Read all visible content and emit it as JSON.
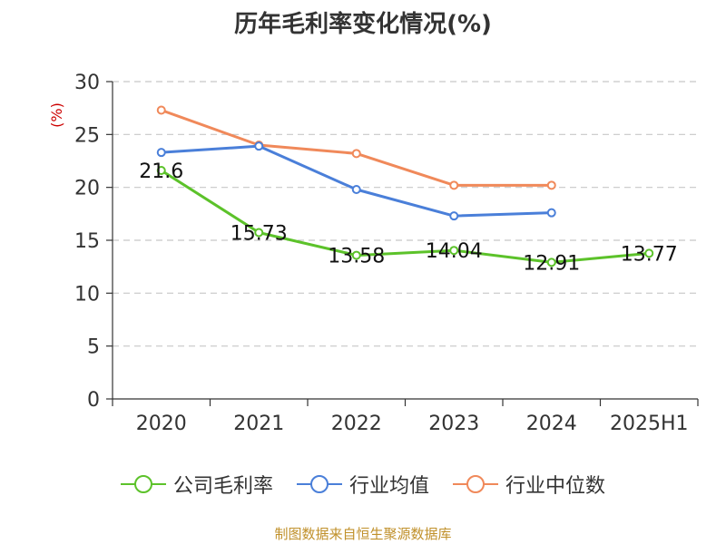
{
  "chart_data": {
    "type": "line",
    "title": "历年毛利率变化情况(%)",
    "ylabel": "(%)",
    "categories": [
      "2020",
      "2021",
      "2022",
      "2023",
      "2024",
      "2025H1"
    ],
    "ylim": [
      0,
      30
    ],
    "yticks": [
      "0",
      "5",
      "10",
      "15",
      "20",
      "25",
      "30"
    ],
    "grid": true,
    "legend_position": "bottom",
    "series": [
      {
        "name": "公司毛利率",
        "color": "#5cc22a",
        "values": [
          21.6,
          15.73,
          13.58,
          14.04,
          12.91,
          13.77
        ],
        "labels": [
          "21.6",
          "15.73",
          "13.58",
          "14.04",
          "12.91",
          "13.77"
        ]
      },
      {
        "name": "行业均值",
        "color": "#4a7fd9",
        "values": [
          23.3,
          23.9,
          19.8,
          17.3,
          17.6,
          null
        ]
      },
      {
        "name": "行业中位数",
        "color": "#f0895a",
        "values": [
          27.3,
          24.0,
          23.2,
          20.2,
          20.2,
          null
        ]
      }
    ]
  },
  "source": "制图数据来自恒生聚源数据库"
}
